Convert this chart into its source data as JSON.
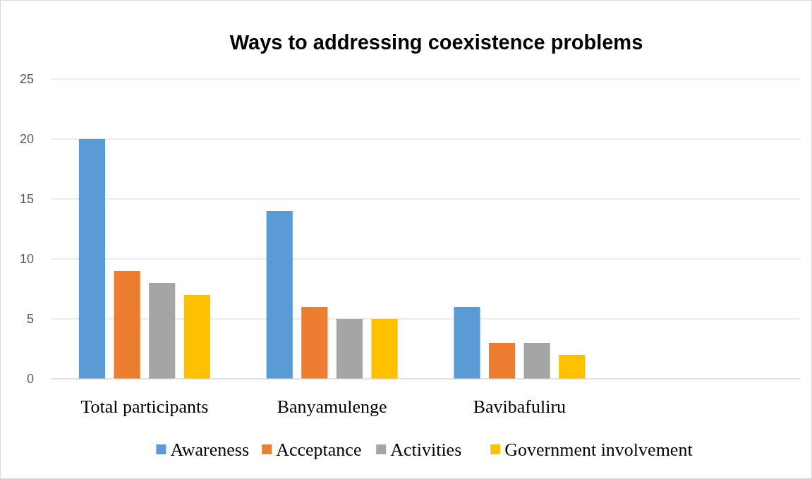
{
  "chart_data": {
    "type": "bar",
    "title": "Ways to addressing coexistence problems",
    "categories": [
      "Total participants",
      "Banyamulenge",
      "Bavibafuliru",
      null
    ],
    "series": [
      {
        "name": "Awareness",
        "color": "#5b9bd5",
        "values": [
          20,
          14,
          6,
          null
        ]
      },
      {
        "name": "Acceptance",
        "color": "#ed7d31",
        "values": [
          9,
          6,
          3,
          null
        ]
      },
      {
        "name": "Activities",
        "color": "#a5a5a5",
        "values": [
          8,
          5,
          3,
          null
        ]
      },
      {
        "name": "Government involvement",
        "color": "#ffc000",
        "values": [
          7,
          5,
          2,
          null
        ]
      }
    ],
    "ylim": [
      0,
      25
    ],
    "yticks": [
      0,
      5,
      10,
      15,
      20,
      25
    ],
    "grid": "y",
    "legend": "bottom"
  }
}
